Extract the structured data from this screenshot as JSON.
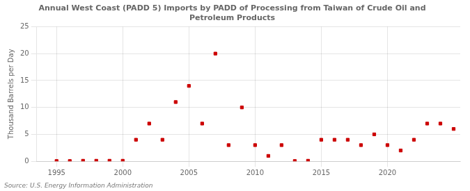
{
  "chart_data": {
    "type": "scatter",
    "title": "Annual West Coast (PADD 5) Imports by PADD of Processing from Taiwan of Crude Oil and\nPetroleum Products",
    "ylabel": "Thousand Barrels per Day",
    "source": "Source: U.S. Energy Information Administration",
    "color": "#cc0000",
    "marker": "square",
    "grid": true,
    "xlim": [
      1993.5,
      2025.5
    ],
    "xticks": [
      1995,
      2000,
      2005,
      2010,
      2015,
      2020
    ],
    "ylim": [
      0,
      25
    ],
    "yticks": [
      0,
      5,
      10,
      15,
      20,
      25
    ],
    "x": [
      1995,
      1996,
      1997,
      1998,
      1999,
      2000,
      2001,
      2002,
      2003,
      2004,
      2005,
      2006,
      2007,
      2008,
      2009,
      2010,
      2011,
      2012,
      2013,
      2014,
      2015,
      2016,
      2017,
      2018,
      2019,
      2020,
      2021,
      2022,
      2023,
      2024,
      2025
    ],
    "values": [
      0.05,
      0.05,
      0.1,
      0.1,
      0.1,
      0.1,
      4.0,
      7.0,
      4.0,
      11.0,
      14.0,
      7.0,
      20.0,
      3.0,
      10.0,
      3.0,
      1.0,
      3.0,
      0.05,
      0.1,
      4.0,
      4.0,
      4.0,
      3.0,
      5.0,
      3.0,
      2.0,
      4.0,
      7.0,
      7.0,
      6.0
    ]
  }
}
